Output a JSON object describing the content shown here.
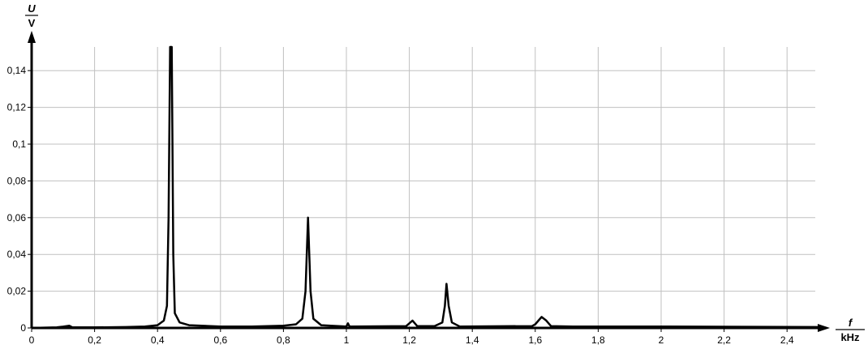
{
  "chart_data": {
    "type": "line",
    "xlabel": "f",
    "xunit": "kHz",
    "ylabel": "U",
    "yunit": "V",
    "xlim": [
      0,
      2.5
    ],
    "ylim": [
      0,
      0.153
    ],
    "grid": true,
    "xticks": [
      0,
      0.2,
      0.4,
      0.6,
      0.8,
      1,
      1.2,
      1.4,
      1.6,
      1.8,
      2,
      2.2,
      2.4
    ],
    "xtick_labels": [
      "0",
      "0,2",
      "0,4",
      "0,6",
      "0,8",
      "1",
      "1,2",
      "1,4",
      "1,6",
      "1,8",
      "2",
      "2,2",
      "2,4"
    ],
    "yticks": [
      0,
      0.02,
      0.04,
      0.06,
      0.08,
      0.1,
      0.12,
      0.14
    ],
    "ytick_labels": [
      "0",
      "0,02",
      "0,04",
      "0,06",
      "0,08",
      "0,1",
      "0,12",
      "0,14"
    ],
    "colors": {
      "line": "#000000",
      "grid": "#c0c0c0"
    },
    "series": [
      {
        "x": [
          0,
          0.08,
          0.1,
          0.12,
          0.13,
          0.2,
          0.3,
          0.36,
          0.4,
          0.42,
          0.43,
          0.435,
          0.44,
          0.445,
          0.45,
          0.455,
          0.47,
          0.5,
          0.6,
          0.7,
          0.8,
          0.84,
          0.86,
          0.87,
          0.878,
          0.886,
          0.895,
          0.92,
          1.0,
          1.005,
          1.01,
          1.19,
          1.21,
          1.225,
          1.28,
          1.305,
          1.313,
          1.318,
          1.325,
          1.335,
          1.36,
          1.59,
          1.6,
          1.62,
          1.635,
          1.65,
          1.72,
          2.02,
          2.5
        ],
        "y": [
          0,
          0.0003,
          0.0007,
          0.0012,
          0.0003,
          0.0003,
          0.0005,
          0.0008,
          0.0015,
          0.004,
          0.012,
          0.06,
          0.16,
          0.16,
          0.04,
          0.008,
          0.003,
          0.0015,
          0.0008,
          0.0008,
          0.0012,
          0.002,
          0.005,
          0.02,
          0.06,
          0.02,
          0.005,
          0.0015,
          0.0008,
          0.0025,
          0.0008,
          0.001,
          0.004,
          0.001,
          0.001,
          0.003,
          0.012,
          0.024,
          0.012,
          0.003,
          0.0008,
          0.001,
          0.002,
          0.006,
          0.004,
          0.001,
          0.0008,
          0.0008,
          0.0005
        ]
      }
    ]
  }
}
